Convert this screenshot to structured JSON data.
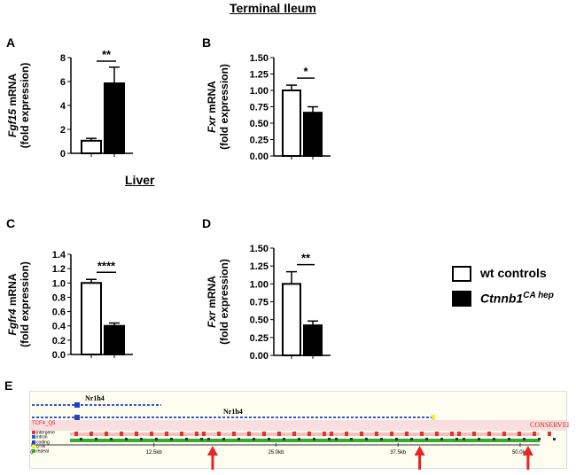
{
  "sections": {
    "ileum_title": "Terminal Ileum",
    "liver_title": "Liver"
  },
  "legend": [
    {
      "label": "wt controls",
      "fill": "#ffffff"
    },
    {
      "label": "Ctnnb1",
      "sup": "CA hep",
      "fill": "#000000"
    }
  ],
  "chart_data": [
    {
      "panel": "A",
      "type": "bar",
      "ylabel_gene": "Fgf15",
      "ylabel_rest": " mRNA",
      "ylabel_line2": "(fold expression)",
      "categories": [
        "wt controls",
        "Ctnnb1 CA hep"
      ],
      "values": [
        1.05,
        5.85
      ],
      "errors": [
        0.2,
        1.35
      ],
      "ylim": [
        0,
        8
      ],
      "yticks": [
        "0",
        "2",
        "4",
        "6",
        "8"
      ],
      "significance": "**"
    },
    {
      "panel": "B",
      "type": "bar",
      "ylabel_gene": "Fxr",
      "ylabel_rest": " mRNA",
      "ylabel_line2": "(fold expression)",
      "categories": [
        "wt controls",
        "Ctnnb1 CA hep"
      ],
      "values": [
        1.0,
        0.66
      ],
      "errors": [
        0.08,
        0.09
      ],
      "ylim": [
        0,
        1.5
      ],
      "yticks": [
        "0.00",
        "0.25",
        "0.50",
        "0.75",
        "1.00",
        "1.25",
        "1.50"
      ],
      "significance": "*"
    },
    {
      "panel": "C",
      "type": "bar",
      "ylabel_gene": "Fgfr4",
      "ylabel_rest": " mRNA",
      "ylabel_line2": "(fold expression)",
      "categories": [
        "wt controls",
        "Ctnnb1 CA hep"
      ],
      "values": [
        1.0,
        0.4
      ],
      "errors": [
        0.05,
        0.04
      ],
      "ylim": [
        0,
        1.4
      ],
      "yticks": [
        "0.0",
        "0.2",
        "0.4",
        "0.6",
        "0.8",
        "1.0",
        "1.2",
        "1.4"
      ],
      "significance": "****"
    },
    {
      "panel": "D",
      "type": "bar",
      "ylabel_gene": "Fxr",
      "ylabel_rest": " mRNA",
      "ylabel_line2": "(fold expression)",
      "categories": [
        "wt controls",
        "Ctnnb1 CA hep"
      ],
      "values": [
        1.0,
        0.42
      ],
      "errors": [
        0.17,
        0.06
      ],
      "ylim": [
        0,
        1.5
      ],
      "yticks": [
        "0.00",
        "0.25",
        "0.50",
        "0.75",
        "1.00",
        "1.25",
        "1.50"
      ],
      "significance": "**"
    }
  ],
  "panel_e": {
    "letter": "E",
    "gene_labels": [
      "Nr1h4",
      "Nr1h4"
    ],
    "track_label": "TCF4_Q5",
    "conserved_label": "CONSERVEI",
    "legend_items": [
      {
        "label": "intergene",
        "color": "#dd3333"
      },
      {
        "label": "intron",
        "color": "#3355dd"
      },
      {
        "label": "coding",
        "color": "#2244bb"
      },
      {
        "label": "UTR",
        "color": "#eeee33"
      },
      {
        "label": "repeat",
        "color": "#33aa33"
      }
    ],
    "axis_ticks": [
      "0",
      "12.5kb",
      "25.0kb",
      "37.5kb",
      "50.0kb"
    ],
    "axis_kb_max": 52,
    "arrow_positions_kb": [
      18.6,
      39.8,
      50.9
    ],
    "arrow_color": "#ee2222"
  }
}
